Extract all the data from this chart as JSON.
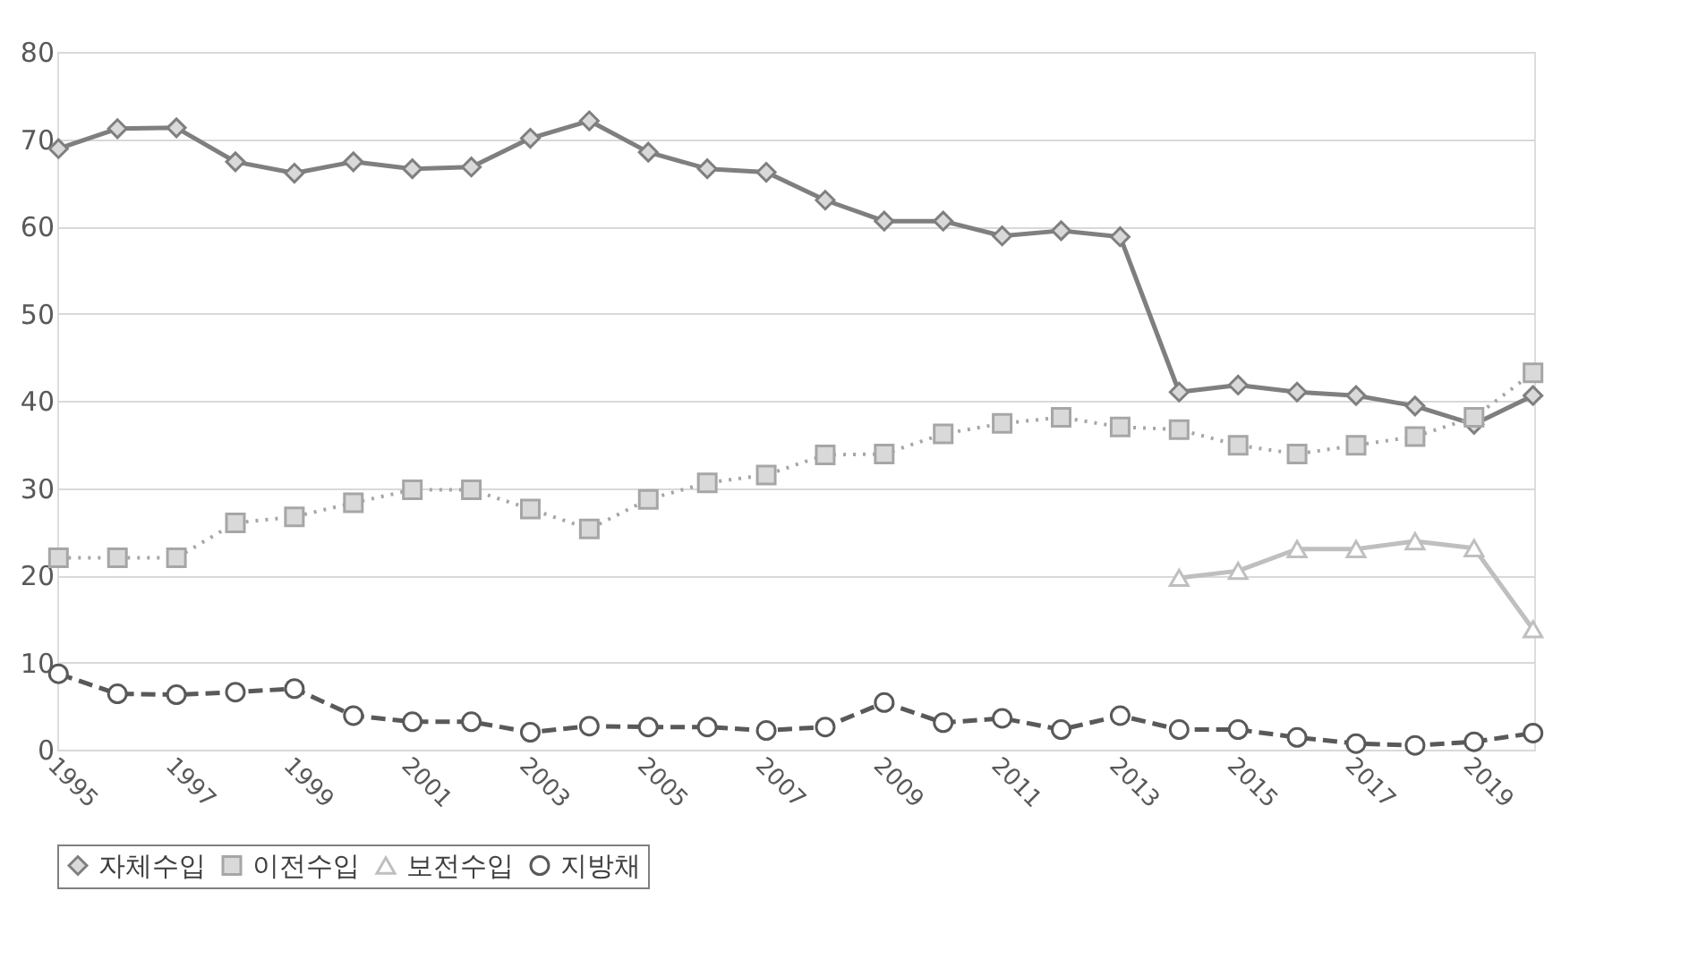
{
  "chart_data": {
    "type": "line",
    "categories": [
      "1995",
      null,
      "1997",
      null,
      "1999",
      null,
      "2001",
      null,
      "2003",
      null,
      "2005",
      null,
      "2007",
      null,
      "2009",
      null,
      "2011",
      null,
      "2013",
      null,
      "2015",
      null,
      "2017",
      null,
      "2019",
      null
    ],
    "series": [
      {
        "name": "자체수입",
        "color": "#7f7f7f",
        "marker": "diamond",
        "line_style": "solid",
        "values": [
          68.9,
          71.2,
          71.3,
          67.4,
          66.1,
          67.4,
          66.6,
          66.8,
          70.1,
          72.1,
          68.5,
          66.6,
          66.2,
          63.0,
          60.6,
          60.6,
          58.9,
          59.5,
          58.8,
          41.0,
          41.8,
          41.0,
          40.6,
          39.4,
          37.3,
          40.6
        ]
      },
      {
        "name": "이전수입",
        "color": "#a6a6a6",
        "marker": "square",
        "line_style": "dotted",
        "values": [
          22.0,
          22.0,
          22.0,
          26.0,
          26.7,
          28.3,
          29.8,
          29.8,
          27.6,
          25.3,
          28.7,
          30.6,
          31.5,
          33.8,
          33.9,
          36.2,
          37.4,
          38.1,
          37.0,
          36.7,
          34.9,
          33.9,
          34.9,
          35.9,
          38.1,
          43.2
        ]
      },
      {
        "name": "보전수입",
        "color": "#bfbfbf",
        "marker": "triangle",
        "line_style": "solid",
        "values": [
          null,
          null,
          null,
          null,
          null,
          null,
          null,
          null,
          null,
          null,
          null,
          null,
          null,
          null,
          null,
          null,
          null,
          null,
          null,
          19.7,
          20.5,
          23.0,
          23.0,
          23.9,
          23.1,
          13.8
        ]
      },
      {
        "name": "지방채",
        "color": "#595959",
        "marker": "circle",
        "line_style": "dashed",
        "values": [
          8.7,
          6.4,
          6.3,
          6.6,
          7.0,
          3.9,
          3.2,
          3.2,
          2.0,
          2.7,
          2.6,
          2.6,
          2.2,
          2.6,
          5.4,
          3.1,
          3.6,
          2.3,
          3.9,
          2.3,
          2.3,
          1.4,
          0.7,
          0.5,
          0.9,
          1.9
        ]
      }
    ],
    "ylim": [
      0,
      80
    ],
    "yticks": [
      0,
      10,
      20,
      30,
      40,
      50,
      60,
      70,
      80
    ],
    "grid": "y",
    "legend": "bottom"
  }
}
